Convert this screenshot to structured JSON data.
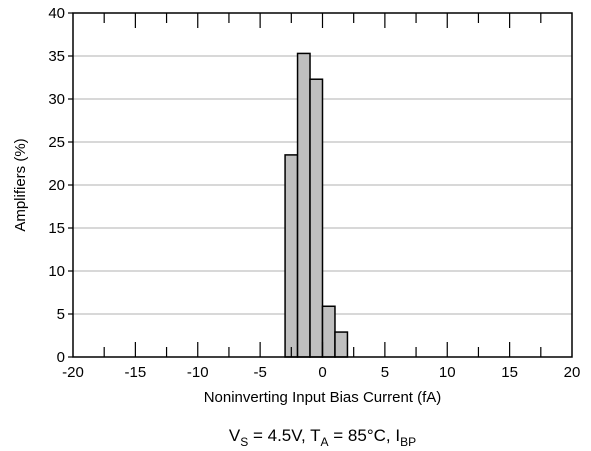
{
  "chart_data": {
    "type": "bar",
    "xlabel": "Noninverting Input Bias Current (fA)",
    "ylabel": "Amplifiers (%)",
    "caption": {
      "parts": [
        {
          "text": "V",
          "sub": false
        },
        {
          "text": "S",
          "sub": true
        },
        {
          "text": " = 4.5V, T",
          "sub": false
        },
        {
          "text": "A",
          "sub": true
        },
        {
          "text": " = 85°C, I",
          "sub": false
        },
        {
          "text": "BP",
          "sub": true
        }
      ]
    },
    "xlim": [
      -20,
      20
    ],
    "ylim": [
      0,
      40
    ],
    "xticks": [
      -20,
      -15,
      -10,
      -5,
      0,
      5,
      10,
      15,
      20
    ],
    "yticks": [
      0,
      5,
      10,
      15,
      20,
      25,
      30,
      35,
      40
    ],
    "bin_width": 1,
    "bins": [
      {
        "x0": -3,
        "x1": -2,
        "value": 23.5
      },
      {
        "x0": -2,
        "x1": -1,
        "value": 35.3
      },
      {
        "x0": -1,
        "x1": 0,
        "value": 32.3
      },
      {
        "x0": 0,
        "x1": 1,
        "value": 5.9
      },
      {
        "x0": 1,
        "x1": 2,
        "value": 2.9
      }
    ],
    "grid": {
      "y": true,
      "x": false
    },
    "colors": {
      "bar_fill": "#bfbfbf",
      "bar_stroke": "#000000",
      "grid": "#b0b0b0",
      "axis": "#000000"
    }
  }
}
